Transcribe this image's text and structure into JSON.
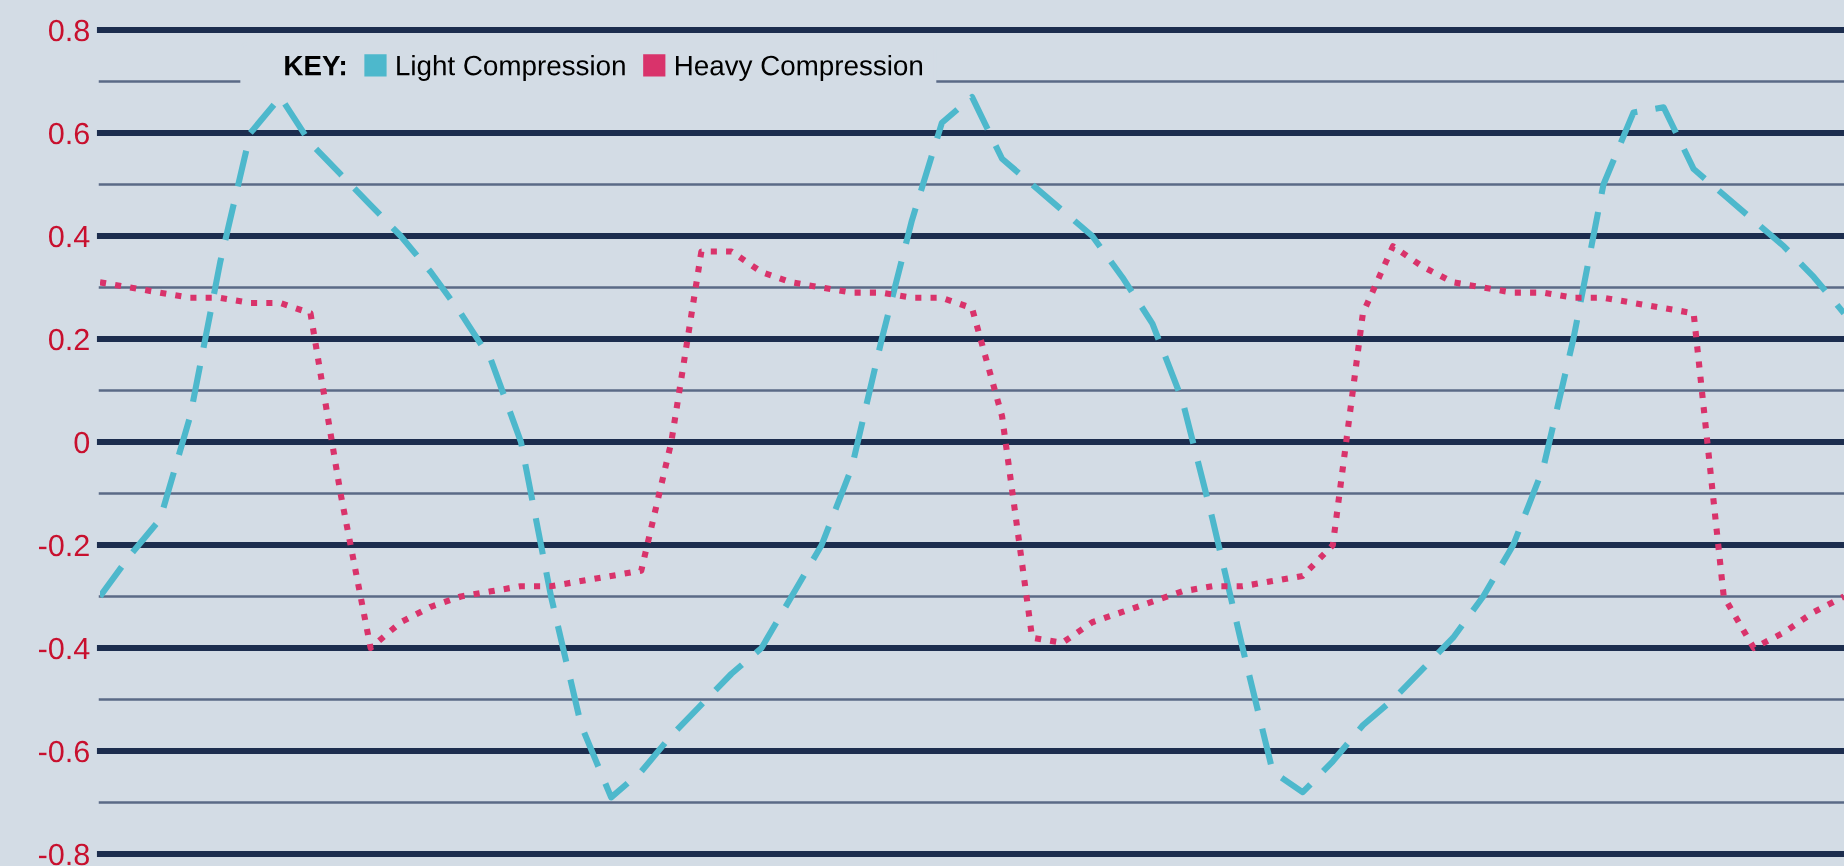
{
  "chart_data": {
    "type": "line",
    "categories": [
      null,
      null,
      null,
      null,
      null,
      null,
      null,
      null,
      null,
      null,
      null,
      null,
      null,
      null,
      null,
      null,
      null,
      null,
      null,
      null,
      null,
      null,
      null,
      null,
      null,
      null,
      null,
      null,
      null,
      null,
      null,
      null,
      null,
      null,
      null,
      null,
      null,
      null,
      null,
      null,
      null,
      null,
      null,
      null,
      null,
      null,
      null,
      null,
      null,
      null,
      null,
      null,
      null,
      null,
      null,
      null,
      null,
      null,
      null
    ],
    "series": [
      {
        "name": "Light Compression",
        "color": "#4db8cc",
        "line_style": "dashed",
        "values": [
          -0.3,
          -0.22,
          -0.15,
          0.05,
          0.35,
          0.6,
          0.67,
          0.58,
          0.52,
          0.46,
          0.4,
          0.33,
          0.25,
          0.16,
          0.0,
          -0.3,
          -0.55,
          -0.69,
          -0.64,
          -0.57,
          -0.51,
          -0.45,
          -0.4,
          -0.3,
          -0.2,
          -0.05,
          0.2,
          0.43,
          0.62,
          0.67,
          0.55,
          0.5,
          0.45,
          0.4,
          0.32,
          0.23,
          0.08,
          -0.15,
          -0.4,
          -0.64,
          -0.68,
          -0.62,
          -0.55,
          -0.5,
          -0.44,
          -0.38,
          -0.3,
          -0.2,
          -0.05,
          0.2,
          0.5,
          0.64,
          0.65,
          0.53,
          0.48,
          0.43,
          0.38,
          0.32,
          0.25
        ]
      },
      {
        "name": "Heavy Compression",
        "color": "#d9336b",
        "line_style": "dotted",
        "values": [
          0.31,
          0.3,
          0.29,
          0.28,
          0.28,
          0.27,
          0.27,
          0.25,
          -0.1,
          -0.4,
          -0.35,
          -0.32,
          -0.3,
          -0.29,
          -0.28,
          -0.28,
          -0.27,
          -0.26,
          -0.25,
          0.0,
          0.37,
          0.37,
          0.33,
          0.31,
          0.3,
          0.29,
          0.29,
          0.28,
          0.28,
          0.26,
          0.05,
          -0.38,
          -0.39,
          -0.35,
          -0.33,
          -0.31,
          -0.29,
          -0.28,
          -0.28,
          -0.27,
          -0.26,
          -0.2,
          0.25,
          0.38,
          0.34,
          0.31,
          0.3,
          0.29,
          0.29,
          0.28,
          0.28,
          0.27,
          0.26,
          0.25,
          -0.3,
          -0.4,
          -0.37,
          -0.33,
          -0.3
        ]
      }
    ],
    "legend_title": "KEY:",
    "legend": "top",
    "ylim": [
      -0.8,
      0.8
    ],
    "yticks": [
      -0.8,
      {
        "value": -0.7,
        "label": null
      },
      -0.6,
      {
        "value": -0.5,
        "label": null
      },
      -0.4,
      {
        "value": -0.3,
        "label": null
      },
      -0.2,
      {
        "value": -0.1,
        "label": null
      },
      0,
      {
        "value": 0.1,
        "label": null
      },
      0.2,
      {
        "value": 0.3,
        "label": null
      },
      0.4,
      {
        "value": 0.5,
        "label": null
      },
      0.6,
      {
        "value": 0.7,
        "label": null
      },
      0.8
    ],
    "tick_labels": "y",
    "grid": "y"
  }
}
